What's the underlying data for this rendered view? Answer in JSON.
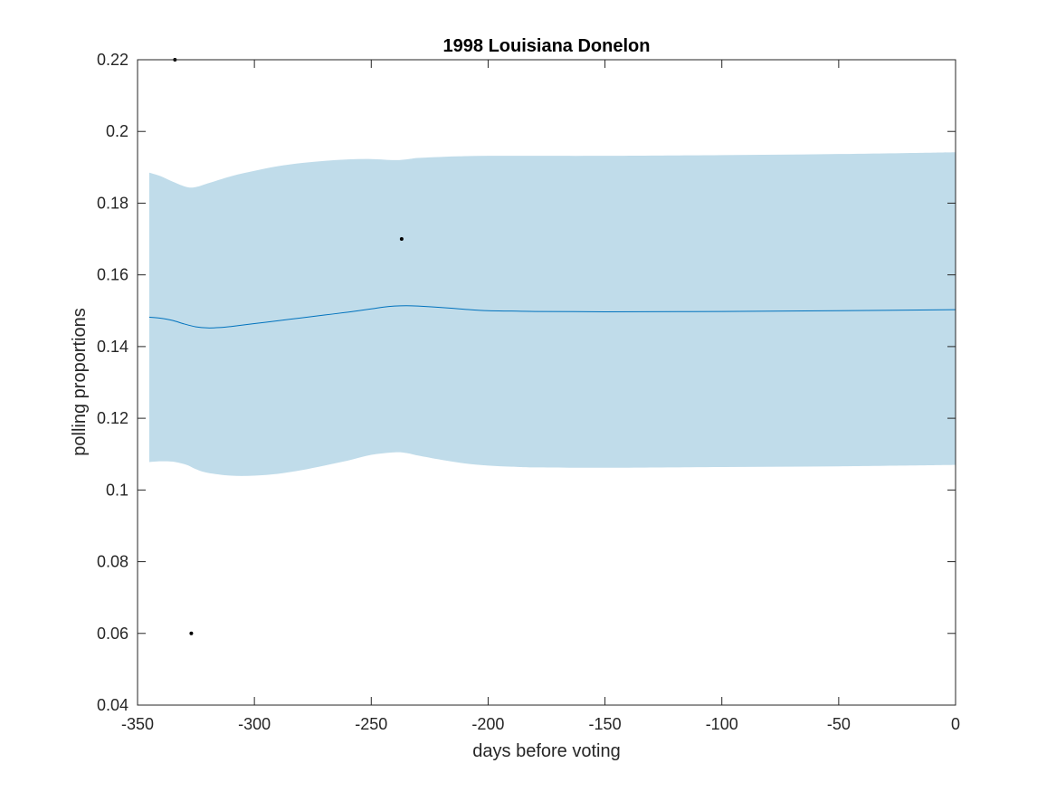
{
  "chart_data": {
    "type": "line",
    "title": "1998 Louisiana Donelon",
    "xlabel": "days before voting",
    "ylabel": "polling proportions",
    "xlim": [
      -350,
      0
    ],
    "ylim": [
      0.04,
      0.22
    ],
    "xticks": [
      -350,
      -300,
      -250,
      -200,
      -150,
      -100,
      -50,
      0
    ],
    "xtick_labels": [
      "-350",
      "-300",
      "-250",
      "-200",
      "-150",
      "-100",
      "-50",
      "0"
    ],
    "yticks": [
      0.04,
      0.06,
      0.08,
      0.1,
      0.12,
      0.14,
      0.16,
      0.18,
      0.2,
      0.22
    ],
    "ytick_labels": [
      "0.04",
      "0.06",
      "0.08",
      "0.1",
      "0.12",
      "0.14",
      "0.16",
      "0.18",
      "0.2",
      "0.22"
    ],
    "grid": false,
    "band": {
      "color": "#c0dcea",
      "x": [
        -345,
        -340,
        -335,
        -329,
        -325,
        -320,
        -310,
        -300,
        -290,
        -280,
        -270,
        -260,
        -250,
        -240,
        -235,
        -230,
        -220,
        -210,
        -200,
        -190,
        -180,
        -150,
        -100,
        -50,
        0
      ],
      "upper": [
        0.1885,
        0.1875,
        0.186,
        0.1845,
        0.1845,
        0.1855,
        0.1875,
        0.189,
        0.1903,
        0.1912,
        0.1918,
        0.1922,
        0.1923,
        0.192,
        0.1922,
        0.1926,
        0.1929,
        0.1931,
        0.1932,
        0.1932,
        0.1932,
        0.1932,
        0.1934,
        0.1937,
        0.1942
      ],
      "lower": [
        0.1078,
        0.108,
        0.1079,
        0.107,
        0.1058,
        0.1048,
        0.104,
        0.104,
        0.1045,
        0.1055,
        0.1068,
        0.1082,
        0.1098,
        0.1105,
        0.1103,
        0.1096,
        0.1084,
        0.1074,
        0.1068,
        0.1065,
        0.1063,
        0.1062,
        0.1064,
        0.1066,
        0.107
      ]
    },
    "series": [
      {
        "color": "#0072bd",
        "x": [
          -345,
          -340,
          -335,
          -330,
          -325,
          -320,
          -315,
          -310,
          -300,
          -290,
          -280,
          -270,
          -260,
          -250,
          -245,
          -240,
          -235,
          -230,
          -220,
          -210,
          -200,
          -190,
          -180,
          -150,
          -100,
          -50,
          0
        ],
        "y": [
          0.1482,
          0.1479,
          0.1473,
          0.1463,
          0.1455,
          0.1452,
          0.1453,
          0.1456,
          0.1464,
          0.1472,
          0.148,
          0.1488,
          0.1496,
          0.1505,
          0.151,
          0.1513,
          0.1514,
          0.1513,
          0.1509,
          0.1504,
          0.15,
          0.1499,
          0.1498,
          0.1497,
          0.1498,
          0.15,
          0.1503
        ]
      }
    ],
    "points": {
      "color": "#000000",
      "x": [
        -334,
        -237,
        -327
      ],
      "y": [
        0.22,
        0.17,
        0.06
      ]
    }
  }
}
